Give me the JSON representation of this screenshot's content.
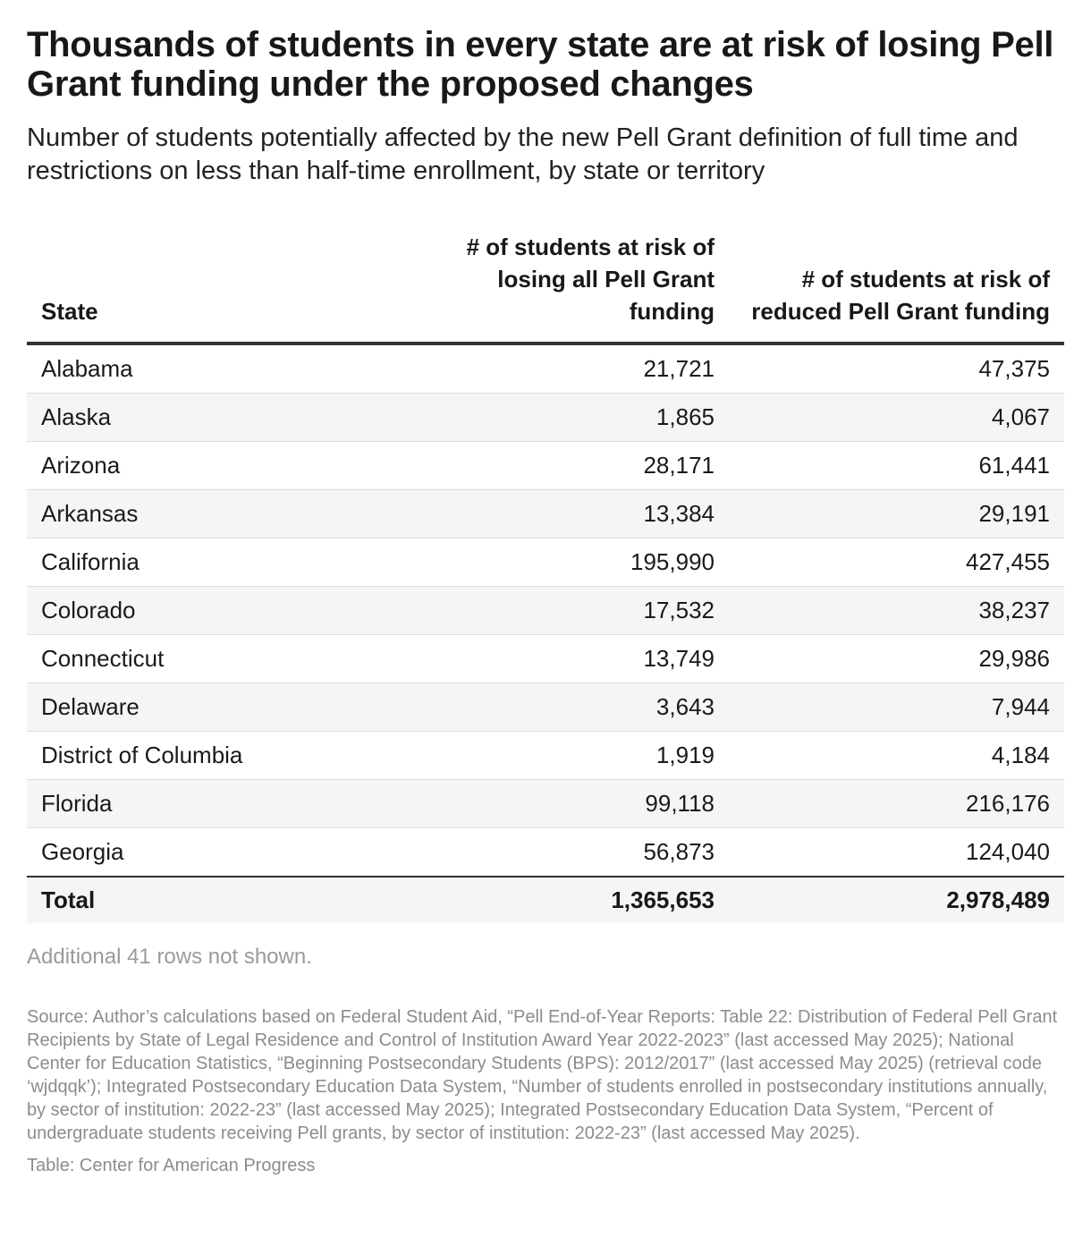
{
  "title": "Thousands of students in every state are at risk of losing Pell Grant funding under the proposed changes",
  "subtitle": "Number of students potentially affected by the new Pell Grant definition of full time and restrictions on less than half-time enrollment, by state or territory",
  "chart_data": {
    "type": "table",
    "title": "Thousands of students in every state are at risk of losing Pell Grant funding under the proposed changes",
    "columns": [
      "State",
      "# of students at risk of losing all Pell Grant funding",
      "# of students at risk of reduced Pell Grant funding"
    ],
    "rows": [
      {
        "state": "Alabama",
        "lose_all": "21,721",
        "reduced": "47,375"
      },
      {
        "state": "Alaska",
        "lose_all": "1,865",
        "reduced": "4,067"
      },
      {
        "state": "Arizona",
        "lose_all": "28,171",
        "reduced": "61,441"
      },
      {
        "state": "Arkansas",
        "lose_all": "13,384",
        "reduced": "29,191"
      },
      {
        "state": "California",
        "lose_all": "195,990",
        "reduced": "427,455"
      },
      {
        "state": "Colorado",
        "lose_all": "17,532",
        "reduced": "38,237"
      },
      {
        "state": "Connecticut",
        "lose_all": "13,749",
        "reduced": "29,986"
      },
      {
        "state": "Delaware",
        "lose_all": "3,643",
        "reduced": "7,944"
      },
      {
        "state": "District of Columbia",
        "lose_all": "1,919",
        "reduced": "4,184"
      },
      {
        "state": "Florida",
        "lose_all": "99,118",
        "reduced": "216,176"
      },
      {
        "state": "Georgia",
        "lose_all": "56,873",
        "reduced": "124,040"
      }
    ],
    "total": {
      "label": "Total",
      "lose_all": "1,365,653",
      "reduced": "2,978,489"
    }
  },
  "more_rows_note": "Additional 41 rows not shown.",
  "source": "Source: Author’s calculations based on Federal Student Aid, “Pell End-of-Year Reports: Table 22: Distribution of Federal Pell Grant Recipients by State of Legal Residence and Control of Institution Award Year 2022-2023” (last accessed May 2025); National Center for Education Statistics, “Beginning Postsecondary Students (BPS): 2012/2017” (last accessed May 2025) (retrieval code ‘wjdqqk’); Integrated Postsecondary Education Data System, “Number of students enrolled in postsecondary institutions annually, by sector of institution: 2022-23” (last accessed May 2025); Integrated Postsecondary Education Data System, “Percent of undergraduate students receiving Pell grants, by sector of institution: 2022-23” (last accessed May 2025).",
  "credit": "Table: Center for American Progress"
}
